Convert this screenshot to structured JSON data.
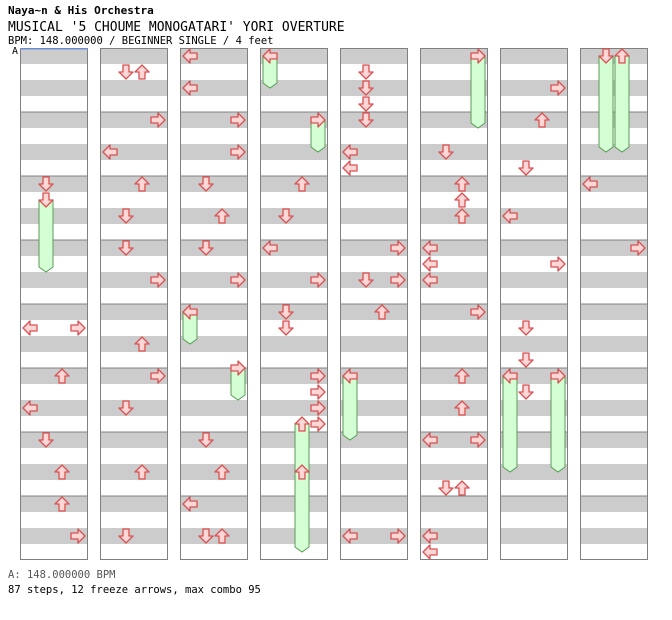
{
  "header": {
    "artist": "Naya~n & His Orchestra",
    "title": "MUSICAL '5 CHOUME MONOGATARI' YORI OVERTURE",
    "info": "BPM: 148.000000 / BEGINNER SINGLE / 4 feet",
    "bpm_marker": "A"
  },
  "footer": {
    "bpm_line": "A: 148.000000 BPM",
    "stats": "87 steps, 12 freeze arrows, max combo 95"
  },
  "colors": {
    "arrow_fill": "#ffd6d6",
    "arrow_stroke": "#d85050",
    "freeze_fill": "#d4ffd4",
    "freeze_stroke": "#5a9a5a",
    "stripe": "#cccccc",
    "bpm_line": "#6699ff"
  },
  "icons": {
    "arrow": "step-arrow-icon",
    "freeze": "freeze-arrow-icon"
  },
  "chart_data": {
    "type": "other",
    "columns": 8,
    "measures_per_column": 8,
    "lanes": [
      "left",
      "down",
      "up",
      "right"
    ],
    "freezes": [
      [
        0,
        2.375,
        3.5,
        1
      ],
      [
        3,
        0.125,
        0.625,
        0
      ],
      [
        3,
        1.125,
        1.625,
        3
      ],
      [
        4,
        5.125,
        6.125,
        0
      ],
      [
        5,
        0.125,
        1.25,
        3
      ],
      [
        6,
        5.125,
        6.625,
        0
      ],
      [
        6,
        5.125,
        6.625,
        3
      ],
      [
        7,
        0.125,
        1.625,
        1
      ],
      [
        7,
        0.125,
        1.625,
        2
      ],
      [
        2,
        4.125,
        4.625,
        0
      ],
      [
        2,
        5.0,
        5.5,
        3
      ],
      [
        3,
        5.875,
        7.875,
        2
      ]
    ],
    "notes": [
      [
        0,
        2.125,
        1
      ],
      [
        0,
        4.375,
        0
      ],
      [
        0,
        4.375,
        3
      ],
      [
        0,
        5.125,
        2
      ],
      [
        0,
        5.625,
        0
      ],
      [
        0,
        6.125,
        1
      ],
      [
        0,
        6.625,
        2
      ],
      [
        0,
        7.125,
        2
      ],
      [
        0,
        7.625,
        3
      ],
      [
        1,
        0.375,
        1
      ],
      [
        1,
        0.375,
        2
      ],
      [
        1,
        1.125,
        3
      ],
      [
        1,
        1.625,
        0
      ],
      [
        1,
        2.125,
        2
      ],
      [
        1,
        2.625,
        1
      ],
      [
        1,
        3.125,
        1
      ],
      [
        1,
        3.625,
        3
      ],
      [
        1,
        4.625,
        2
      ],
      [
        1,
        5.125,
        3
      ],
      [
        1,
        5.625,
        1
      ],
      [
        1,
        6.625,
        2
      ],
      [
        1,
        7.625,
        1
      ],
      [
        2,
        0.125,
        0
      ],
      [
        2,
        0.625,
        0
      ],
      [
        2,
        1.125,
        3
      ],
      [
        2,
        1.625,
        3
      ],
      [
        2,
        2.125,
        1
      ],
      [
        2,
        2.625,
        2
      ],
      [
        2,
        3.125,
        1
      ],
      [
        2,
        3.625,
        3
      ],
      [
        2,
        6.125,
        1
      ],
      [
        2,
        6.625,
        2
      ],
      [
        2,
        7.125,
        0
      ],
      [
        2,
        7.625,
        1
      ],
      [
        2,
        7.625,
        2
      ],
      [
        3,
        2.125,
        2
      ],
      [
        3,
        2.625,
        1
      ],
      [
        3,
        3.125,
        0
      ],
      [
        3,
        3.625,
        3
      ],
      [
        3,
        4.125,
        1
      ],
      [
        3,
        4.375,
        1
      ],
      [
        3,
        5.125,
        3
      ],
      [
        3,
        5.375,
        3
      ],
      [
        3,
        5.625,
        3
      ],
      [
        3,
        5.875,
        3
      ],
      [
        3,
        6.625,
        2
      ],
      [
        4,
        0.375,
        1
      ],
      [
        4,
        0.625,
        1
      ],
      [
        4,
        0.875,
        1
      ],
      [
        4,
        1.125,
        1
      ],
      [
        4,
        1.625,
        0
      ],
      [
        4,
        1.875,
        0
      ],
      [
        4,
        3.125,
        3
      ],
      [
        4,
        3.625,
        3
      ],
      [
        4,
        3.625,
        1
      ],
      [
        4,
        4.125,
        2
      ],
      [
        4,
        7.625,
        0
      ],
      [
        4,
        7.625,
        3
      ],
      [
        5,
        1.625,
        1
      ],
      [
        5,
        2.125,
        2
      ],
      [
        5,
        2.375,
        2
      ],
      [
        5,
        2.625,
        2
      ],
      [
        5,
        3.125,
        0
      ],
      [
        5,
        3.375,
        0
      ],
      [
        5,
        3.625,
        0
      ],
      [
        5,
        4.125,
        3
      ],
      [
        5,
        5.125,
        2
      ],
      [
        5,
        5.625,
        2
      ],
      [
        5,
        6.125,
        0
      ],
      [
        5,
        6.125,
        3
      ],
      [
        5,
        6.875,
        1
      ],
      [
        5,
        6.875,
        2
      ],
      [
        5,
        7.625,
        0
      ],
      [
        5,
        7.875,
        0
      ],
      [
        6,
        0.625,
        3
      ],
      [
        6,
        1.125,
        2
      ],
      [
        6,
        1.875,
        1
      ],
      [
        6,
        2.625,
        0
      ],
      [
        6,
        3.375,
        3
      ],
      [
        6,
        4.375,
        1
      ],
      [
        6,
        4.875,
        1
      ],
      [
        6,
        5.375,
        1
      ],
      [
        7,
        2.125,
        0
      ],
      [
        7,
        3.125,
        3
      ]
    ]
  }
}
